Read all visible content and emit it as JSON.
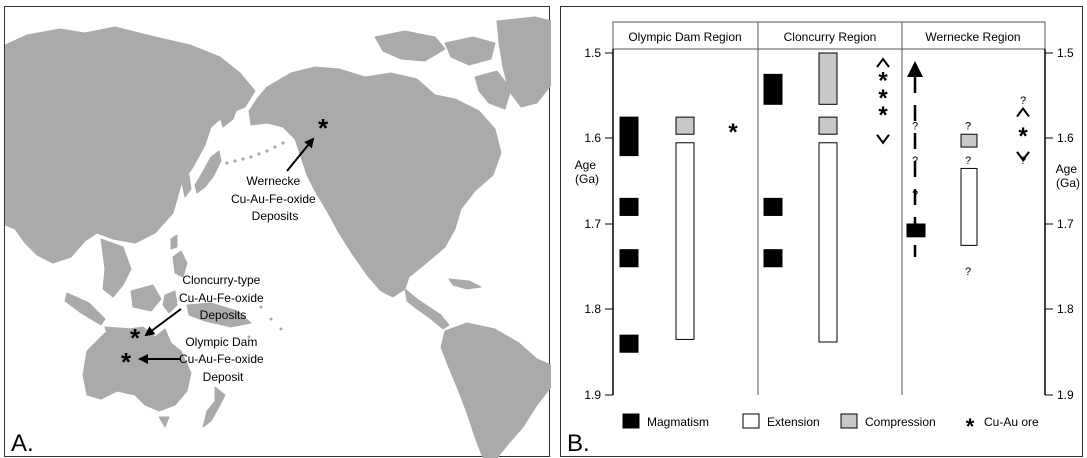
{
  "panel_a": {
    "letter": "A.",
    "wernecke_label": [
      "Wernecke",
      "Cu-Au-Fe-oxide",
      "Deposits"
    ],
    "cloncurry_label": [
      "Cloncurry-type",
      "Cu-Au-Fe-oxide",
      "Deposits"
    ],
    "olympic_label": [
      "Olympic Dam",
      "Cu-Au-Fe-oxide",
      "Deposit"
    ],
    "colors": {
      "land": "#aaaaaa",
      "ocean": "#ffffff"
    }
  },
  "panel_b": {
    "letter": "B.",
    "regions": [
      "Olympic Dam Region",
      "Cloncurry Region",
      "Wernecke Region"
    ],
    "axis_title": [
      "Age",
      "(Ga)"
    ],
    "ticks": [
      "1.5",
      "1.6",
      "1.7",
      "1.8",
      "1.9"
    ],
    "uncertain_mark": "?",
    "legend": {
      "magmatism": "Magmatism",
      "extension": "Extension",
      "compression": "Compression",
      "ore": "Cu-Au ore"
    },
    "colors": {
      "magmatism": "#000000",
      "extension": "#ffffff",
      "compression": "#c8c8c8"
    }
  },
  "chart_data": {
    "type": "timeline",
    "y_axis_range_ga": [
      1.5,
      1.9
    ],
    "magmatism": {
      "Olympic Dam Region": [
        [
          1.575,
          1.62
        ],
        [
          1.67,
          1.69
        ],
        [
          1.73,
          1.75
        ],
        [
          1.83,
          1.85
        ]
      ],
      "Cloncurry Region": [
        [
          1.525,
          1.56
        ],
        [
          1.67,
          1.69
        ],
        [
          1.73,
          1.75
        ]
      ],
      "Wernecke Region": [
        [
          1.7,
          1.715
        ]
      ]
    },
    "extension": {
      "Olympic Dam Region": [
        [
          1.605,
          1.835
        ]
      ],
      "Cloncurry Region": [
        [
          1.605,
          1.838
        ]
      ],
      "Wernecke Region": [
        [
          1.635,
          1.725
        ]
      ]
    },
    "compression": {
      "Olympic Dam Region": [
        [
          1.575,
          1.595
        ]
      ],
      "Cloncurry Region": [
        [
          1.5,
          1.56
        ],
        [
          1.575,
          1.595
        ]
      ],
      "Wernecke Region": [
        [
          1.595,
          1.61
        ]
      ]
    },
    "cu_au_ore": {
      "Olympic Dam Region": [
        1.59
      ],
      "Cloncurry Region": [
        1.53,
        1.55,
        1.57
      ],
      "Wernecke Region": [
        1.595
      ]
    }
  }
}
